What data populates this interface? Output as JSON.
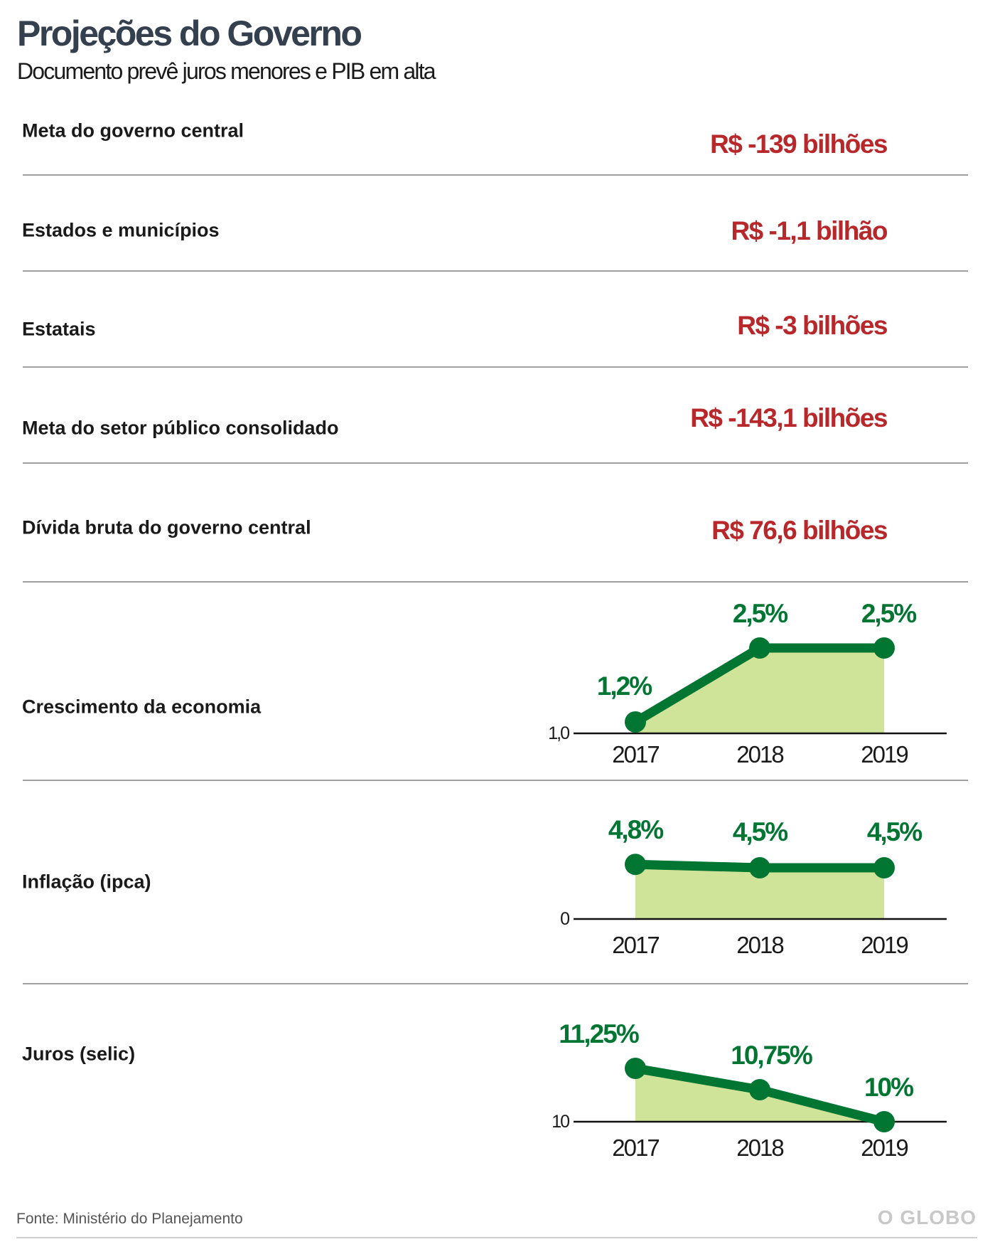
{
  "header": {
    "title": "Projeções do Governo",
    "subtitle": "Documento prevê juros menores e PIB em alta"
  },
  "rows": [
    {
      "label": "Meta do governo central",
      "value": "R$ -139 bilhões"
    },
    {
      "label": "Estados e municípios",
      "value": "R$ -1,1 bilhão"
    },
    {
      "label": "Estatais",
      "value": "R$ -3 bilhões"
    },
    {
      "label": "Meta do setor público consolidado",
      "value": "R$ -143,1 bilhões"
    },
    {
      "label": "Dívida bruta do governo central",
      "value": "R$ 76,6 bilhões"
    }
  ],
  "chart_labels": [
    "Crescimento da economia",
    "Inflação (ipca)",
    "Juros (selic)"
  ],
  "colors": {
    "line": "#007632",
    "area": "#cfe399",
    "value_text": "#b8282b",
    "title": "#35404f"
  },
  "chart_data": [
    {
      "type": "area",
      "title": "Crescimento da economia",
      "categories": [
        "2017",
        "2018",
        "2019"
      ],
      "values": [
        1.2,
        2.5,
        2.5
      ],
      "data_labels": [
        "1,2%",
        "2,5%",
        "2,5%"
      ],
      "baseline": 1.0,
      "baseline_label": "1,0"
    },
    {
      "type": "area",
      "title": "Inflação (ipca)",
      "categories": [
        "2017",
        "2018",
        "2019"
      ],
      "values": [
        4.8,
        4.5,
        4.5
      ],
      "data_labels": [
        "4,8%",
        "4,5%",
        "4,5%"
      ],
      "baseline": 0,
      "baseline_label": "0"
    },
    {
      "type": "area",
      "title": "Juros (selic)",
      "categories": [
        "2017",
        "2018",
        "2019"
      ],
      "values": [
        11.25,
        10.75,
        10
      ],
      "data_labels": [
        "11,25%",
        "10,75%",
        "10%"
      ],
      "baseline": 10,
      "baseline_label": "10"
    }
  ],
  "footer": {
    "source": "Fonte: Ministério do Planejamento",
    "logo": "O GLOBO"
  }
}
